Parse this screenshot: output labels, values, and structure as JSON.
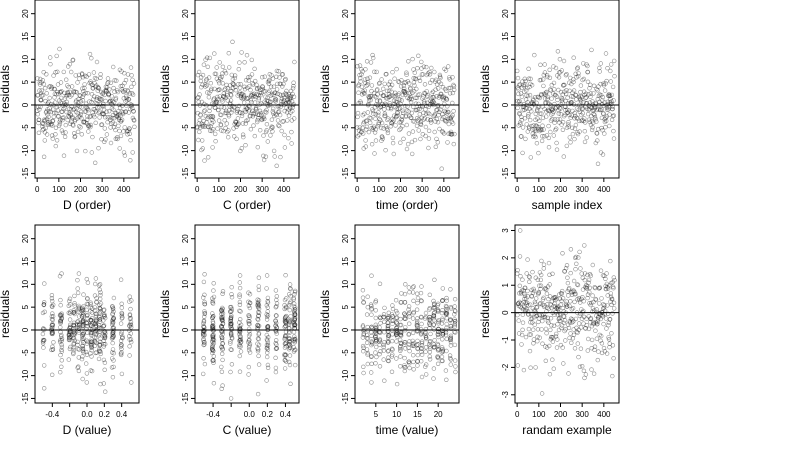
{
  "chart_data": [
    {
      "type": "scatter",
      "xlabel": "D (order)",
      "ylabel": "residuals",
      "xlim": [
        -10,
        470
      ],
      "ylim": [
        -16,
        23
      ],
      "xticks": [
        0,
        100,
        200,
        300,
        400
      ],
      "xtick_labels": [
        "0",
        "100",
        "200",
        "300",
        "400"
      ],
      "yticks": [
        -15,
        -10,
        -5,
        0,
        5,
        10,
        15,
        20
      ],
      "ytick_labels": [
        "-15",
        "-10",
        "-5",
        "0",
        "5",
        "10",
        "15",
        "20"
      ],
      "hline": 0,
      "n_points": 450,
      "x": {
        "mode": "index"
      },
      "y": {
        "sd": 4.5,
        "seed": 11,
        "min": -15,
        "max": 22
      }
    },
    {
      "type": "scatter",
      "xlabel": "C (order)",
      "ylabel": "residuals",
      "xlim": [
        -10,
        470
      ],
      "ylim": [
        -16,
        23
      ],
      "xticks": [
        0,
        100,
        200,
        300,
        400
      ],
      "xtick_labels": [
        "0",
        "100",
        "200",
        "300",
        "400"
      ],
      "yticks": [
        -15,
        -10,
        -5,
        0,
        5,
        10,
        15,
        20
      ],
      "ytick_labels": [
        "-15",
        "-10",
        "-5",
        "0",
        "5",
        "10",
        "15",
        "20"
      ],
      "hline": 0,
      "n_points": 450,
      "x": {
        "mode": "index"
      },
      "y": {
        "sd": 4.5,
        "seed": 23,
        "min": -15,
        "max": 22
      }
    },
    {
      "type": "scatter",
      "xlabel": "time (order)",
      "ylabel": "residuals",
      "xlim": [
        -10,
        470
      ],
      "ylim": [
        -16,
        23
      ],
      "xticks": [
        0,
        100,
        200,
        300,
        400
      ],
      "xtick_labels": [
        "0",
        "100",
        "200",
        "300",
        "400"
      ],
      "yticks": [
        -15,
        -10,
        -5,
        0,
        5,
        10,
        15,
        20
      ],
      "ytick_labels": [
        "-15",
        "-10",
        "-5",
        "0",
        "5",
        "10",
        "15",
        "20"
      ],
      "hline": 0,
      "n_points": 450,
      "x": {
        "mode": "index"
      },
      "y": {
        "sd": 4.5,
        "seed": 37,
        "min": -15,
        "max": 22
      }
    },
    {
      "type": "scatter",
      "xlabel": "sample index",
      "ylabel": "residuals",
      "xlim": [
        -10,
        470
      ],
      "ylim": [
        -16,
        23
      ],
      "xticks": [
        0,
        100,
        200,
        300,
        400
      ],
      "xtick_labels": [
        "0",
        "100",
        "200",
        "300",
        "400"
      ],
      "yticks": [
        -15,
        -10,
        -5,
        0,
        5,
        10,
        15,
        20
      ],
      "ytick_labels": [
        "-15",
        "-10",
        "-5",
        "0",
        "5",
        "10",
        "15",
        "20"
      ],
      "hline": 0,
      "n_points": 450,
      "x": {
        "mode": "index"
      },
      "y": {
        "sd": 4.5,
        "seed": 41,
        "min": -15,
        "max": 22
      }
    },
    {
      "type": "scatter",
      "xlabel": "D (value)",
      "ylabel": "residuals",
      "xlim": [
        -0.6,
        0.6
      ],
      "ylim": [
        -16,
        23
      ],
      "xticks": [
        -0.4,
        -0.2,
        0,
        0.2,
        0.4
      ],
      "xtick_labels": [
        "-0.4",
        "",
        "0.0",
        "0.2",
        "0.4"
      ],
      "yticks": [
        -15,
        -10,
        -5,
        0,
        5,
        10,
        15,
        20
      ],
      "ytick_labels": [
        "-15",
        "-10",
        "-5",
        "0",
        "5",
        "10",
        "15",
        "20"
      ],
      "hline": 0,
      "n_points": 450,
      "x": {
        "mode": "levels",
        "levels": [
          -0.5,
          -0.4,
          -0.3,
          -0.2,
          -0.15,
          -0.1,
          -0.05,
          0,
          0.05,
          0.1,
          0.15,
          0.2,
          0.3,
          0.4,
          0.5
        ],
        "jitter": 0.012
      },
      "y": {
        "sd": 4.5,
        "seed": 53,
        "min": -15,
        "max": 22
      }
    },
    {
      "type": "scatter",
      "xlabel": "C (value)",
      "ylabel": "residuals",
      "xlim": [
        -0.6,
        0.55
      ],
      "ylim": [
        -16,
        23
      ],
      "xticks": [
        -0.4,
        -0.2,
        0,
        0.2,
        0.4
      ],
      "xtick_labels": [
        "-0.4",
        "",
        "0.0",
        "0.2",
        "0.4"
      ],
      "yticks": [
        -15,
        -10,
        -5,
        0,
        5,
        10,
        15,
        20
      ],
      "ytick_labels": [
        "-15",
        "-10",
        "-5",
        "0",
        "5",
        "10",
        "15",
        "20"
      ],
      "hline": 0,
      "n_points": 450,
      "x": {
        "mode": "levels",
        "levels": [
          -0.5,
          -0.4,
          -0.3,
          -0.2,
          -0.1,
          0,
          0.1,
          0.2,
          0.3,
          0.4,
          0.45,
          0.5
        ],
        "jitter": 0.01
      },
      "y": {
        "sd": 4.5,
        "seed": 67,
        "min": -15,
        "max": 22
      }
    },
    {
      "type": "scatter",
      "xlabel": "time (value)",
      "ylabel": "residuals",
      "xlim": [
        0,
        25
      ],
      "ylim": [
        -16,
        23
      ],
      "xticks": [
        5,
        10,
        15,
        20
      ],
      "xtick_labels": [
        "5",
        "10",
        "15",
        "20"
      ],
      "yticks": [
        -15,
        -10,
        -5,
        0,
        5,
        10,
        15,
        20
      ],
      "ytick_labels": [
        "-15",
        "-10",
        "-5",
        "0",
        "5",
        "10",
        "15",
        "20"
      ],
      "hline": 0,
      "n_points": 450,
      "x": {
        "mode": "levels",
        "levels": [
          2,
          3,
          4,
          5,
          6,
          7,
          8,
          9,
          10,
          11,
          12,
          13,
          14,
          15,
          16,
          17,
          18,
          19,
          20,
          21,
          22,
          23,
          24
        ],
        "jitter": 0.15
      },
      "y": {
        "sd": 4.5,
        "seed": 79,
        "min": -15,
        "max": 22
      }
    },
    {
      "type": "scatter",
      "xlabel": "randam example",
      "ylabel": "residuals",
      "xlim": [
        -10,
        470
      ],
      "ylim": [
        -3.3,
        3.2
      ],
      "xticks": [
        0,
        100,
        200,
        300,
        400
      ],
      "xtick_labels": [
        "0",
        "100",
        "200",
        "300",
        "400"
      ],
      "yticks": [
        -3,
        -2,
        -1,
        0,
        1,
        2,
        3
      ],
      "ytick_labels": [
        "-3",
        "-2",
        "-1",
        "0",
        "1",
        "2",
        "3"
      ],
      "hline": 0,
      "n_points": 450,
      "x": {
        "mode": "index"
      },
      "y": {
        "sd": 1.0,
        "seed": 97,
        "min": -3.1,
        "max": 3.0
      }
    }
  ]
}
